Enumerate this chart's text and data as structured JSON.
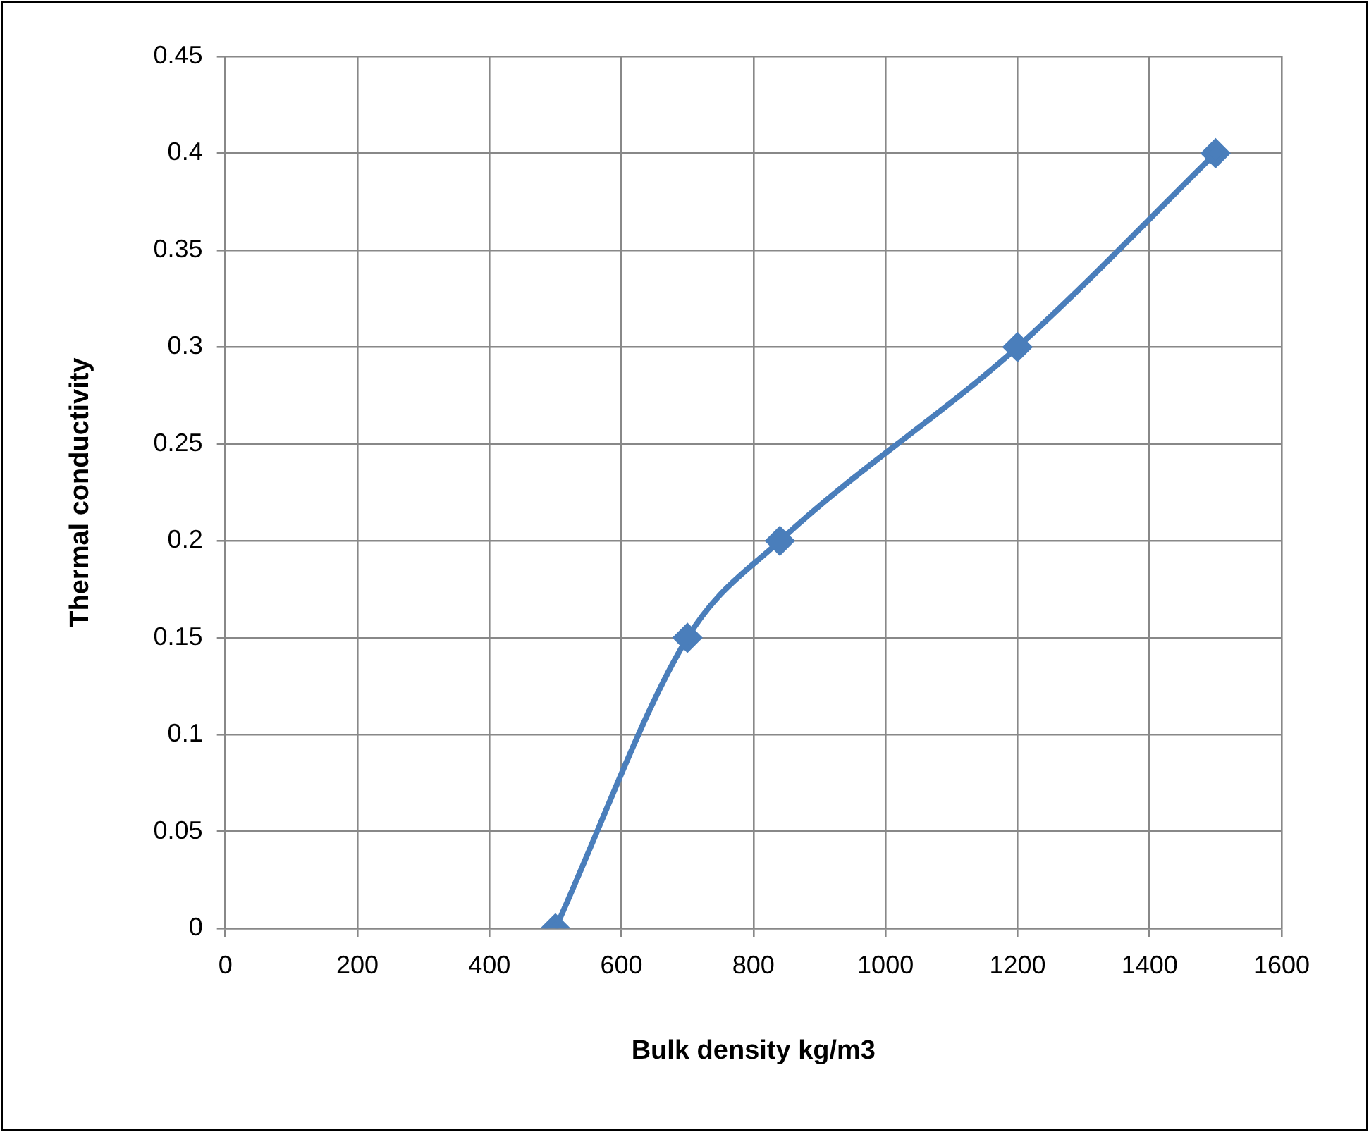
{
  "chart_data": {
    "type": "line",
    "xlabel": "Bulk density kg/m3",
    "ylabel": "Thermal conductivity",
    "series": [
      {
        "color": "#4a7ebb",
        "x": [
          500,
          700,
          840,
          1200,
          1500
        ],
        "values": [
          0,
          0.15,
          0.2,
          0.3,
          0.4
        ]
      }
    ],
    "xlim": [
      0,
      1600
    ],
    "xticks": [
      0,
      200,
      400,
      600,
      800,
      1000,
      1200,
      1400,
      1600
    ],
    "ylim": [
      0,
      0.45
    ],
    "yticks": [
      0,
      0.05,
      0.1,
      0.15,
      0.2,
      0.25,
      0.3,
      0.35,
      0.4,
      0.45
    ],
    "grid": true,
    "legend": false,
    "marker": "diamond",
    "line_style": "solid"
  }
}
